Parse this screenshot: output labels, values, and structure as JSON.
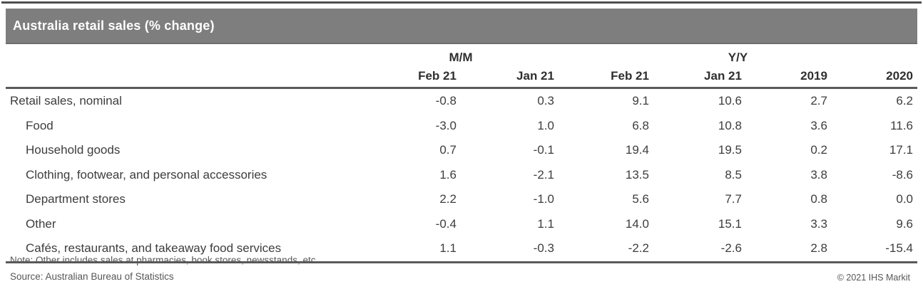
{
  "title": "Australia retail sales (% change)",
  "chart_data": {
    "type": "table",
    "title": "Australia retail sales (% change)",
    "units": "percent change",
    "column_groups": [
      {
        "label": "M/M",
        "span": 2
      },
      {
        "label": "Y/Y",
        "span": 4
      }
    ],
    "columns": [
      "Feb 21",
      "Jan 21",
      "Feb 21",
      "Jan 21",
      "2019",
      "2020"
    ],
    "rows": [
      {
        "label": "Retail sales, nominal",
        "values": [
          "-0.8",
          "0.3",
          "9.1",
          "10.6",
          "2.7",
          "6.2"
        ]
      },
      {
        "label": "Food",
        "values": [
          "-3.0",
          "1.0",
          "6.8",
          "10.8",
          "3.6",
          "11.6"
        ]
      },
      {
        "label": "Household goods",
        "values": [
          "0.7",
          "-0.1",
          "19.4",
          "19.5",
          "0.2",
          "17.1"
        ]
      },
      {
        "label": "Clothing, footwear, and personal accessories",
        "values": [
          "1.6",
          "-2.1",
          "13.5",
          "8.5",
          "3.8",
          "-8.6"
        ]
      },
      {
        "label": "Department stores",
        "values": [
          "2.2",
          "-1.0",
          "5.6",
          "7.7",
          "0.8",
          "0.0"
        ]
      },
      {
        "label": "Other",
        "values": [
          "-0.4",
          "1.1",
          "14.0",
          "15.1",
          "3.3",
          "9.6"
        ]
      },
      {
        "label": "Cafés, restaurants, and takeaway food services",
        "values": [
          "1.1",
          "-0.3",
          "-2.2",
          "-2.6",
          "2.8",
          "-15.4"
        ]
      }
    ]
  },
  "footer": {
    "note": "Note: Other includes sales at pharmacies, book stores, newsstands, etc.",
    "source": "Source: Australian Bureau of Statistics",
    "copyright": "© 2021 IHS Markit"
  },
  "colors": {
    "title_bar_bg": "#7e7e7e",
    "title_text": "#ffffff",
    "rule": "#5a5a5a",
    "body_text": "#3d3d3d",
    "footnote_text": "#565656"
  }
}
